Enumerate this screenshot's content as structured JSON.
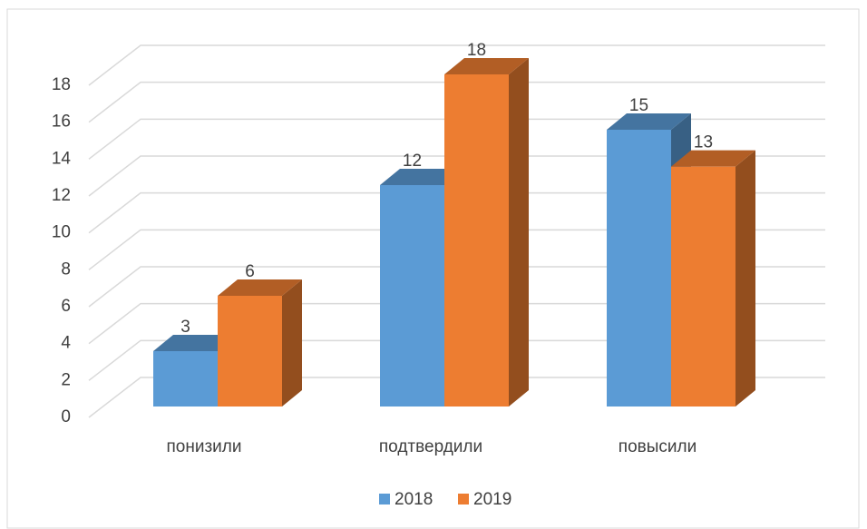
{
  "chart_data": {
    "type": "bar3d",
    "categories": [
      "понизили",
      "подтвердили",
      "повысили"
    ],
    "series": [
      {
        "name": "2018",
        "color": "#5b9bd5",
        "values": [
          3,
          12,
          15
        ]
      },
      {
        "name": "2019",
        "color": "#ed7d31",
        "values": [
          6,
          18,
          13
        ]
      }
    ],
    "ylim": [
      0,
      18
    ],
    "yticks": [
      0,
      2,
      4,
      6,
      8,
      10,
      12,
      14,
      16,
      18
    ],
    "grid": true,
    "legend": "bottom"
  }
}
